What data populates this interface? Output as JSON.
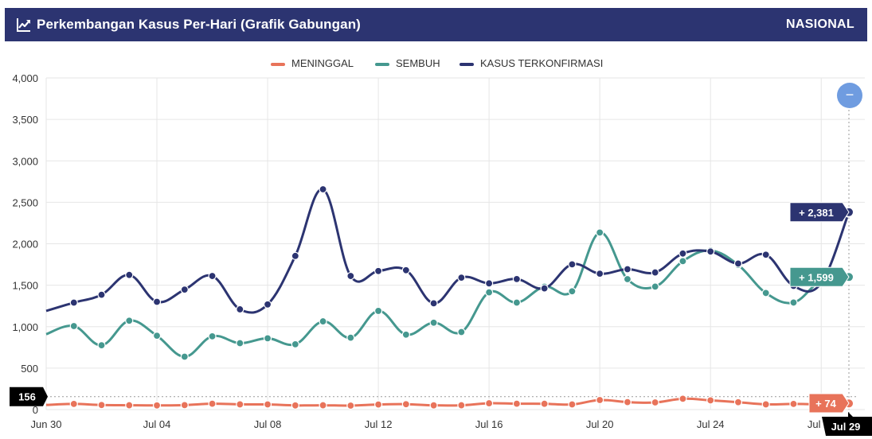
{
  "header": {
    "title": "Perkembangan Kasus Per-Hari (Grafik Gabungan)",
    "region": "NASIONAL"
  },
  "colors": {
    "header_bg": "#2c3471",
    "meninggal": "#e8735a",
    "sembuh": "#45988f",
    "kasus": "#2c3471"
  },
  "chart_data": {
    "type": "line",
    "legend_position": "top-center",
    "grid": true,
    "ylim": [
      0,
      4000
    ],
    "y_ticks": [
      0,
      500,
      1000,
      1500,
      2000,
      2500,
      3000,
      3500,
      4000
    ],
    "y_tick_labels": [
      "0",
      "500",
      "1,000",
      "1,500",
      "2,000",
      "2,500",
      "3,000",
      "3,500",
      "4,000"
    ],
    "x": [
      "Jun 30",
      "Jul 01",
      "Jul 02",
      "Jul 03",
      "Jul 04",
      "Jul 05",
      "Jul 06",
      "Jul 07",
      "Jul 08",
      "Jul 09",
      "Jul 10",
      "Jul 11",
      "Jul 12",
      "Jul 13",
      "Jul 14",
      "Jul 15",
      "Jul 16",
      "Jul 17",
      "Jul 18",
      "Jul 19",
      "Jul 20",
      "Jul 21",
      "Jul 22",
      "Jul 23",
      "Jul 24",
      "Jul 25",
      "Jul 26",
      "Jul 27",
      "Jul 28",
      "Jul 29"
    ],
    "x_tick_labels": [
      "Jun 30",
      "Jul 04",
      "Jul 08",
      "Jul 12",
      "Jul 16",
      "Jul 20",
      "Jul 24",
      "Jul 28"
    ],
    "x_tick_indices": [
      0,
      4,
      8,
      12,
      16,
      20,
      24,
      28
    ],
    "series": [
      {
        "name": "MENINGGAL",
        "color": "#e8735a",
        "values": [
          56,
          68,
          55,
          52,
          50,
          54,
          71,
          63,
          62,
          50,
          52,
          48,
          61,
          65,
          51,
          52,
          76,
          71,
          70,
          62,
          115,
          90,
          86,
          131,
          111,
          89,
          63,
          68,
          64,
          74
        ]
      },
      {
        "name": "SEMBUH",
        "color": "#45988f",
        "values": [
          910,
          1007,
          776,
          1072,
          891,
          638,
          884,
          801,
          860,
          788,
          1064,
          867,
          1190,
          904,
          1048,
          935,
          1414,
          1290,
          1482,
          1427,
          2135,
          1573,
          1483,
          1790,
          1919,
          1745,
          1406,
          1291,
          1556,
          1599
        ]
      },
      {
        "name": "KASUS TERKONFIRMASI",
        "color": "#2c3471",
        "values": [
          1190,
          1290,
          1385,
          1624,
          1300,
          1447,
          1611,
          1209,
          1268,
          1853,
          2657,
          1611,
          1671,
          1681,
          1282,
          1591,
          1522,
          1574,
          1462,
          1752,
          1639,
          1693,
          1654,
          1882,
          1906,
          1761,
          1868,
          1492,
          1525,
          2381
        ]
      }
    ],
    "hover_index": 29,
    "hover_x_label": "Jul 29",
    "hover_y_label": "156",
    "hover_y_value": 156,
    "tooltips": [
      {
        "series": "KASUS TERKONFIRMASI",
        "text": "+ 2,381"
      },
      {
        "series": "SEMBUH",
        "text": "+ 1,599"
      },
      {
        "series": "MENINGGAL",
        "text": "+ 74"
      }
    ]
  },
  "controls": {
    "reset_zoom_icon": "minus-icon",
    "reset_zoom_symbol": "−"
  }
}
